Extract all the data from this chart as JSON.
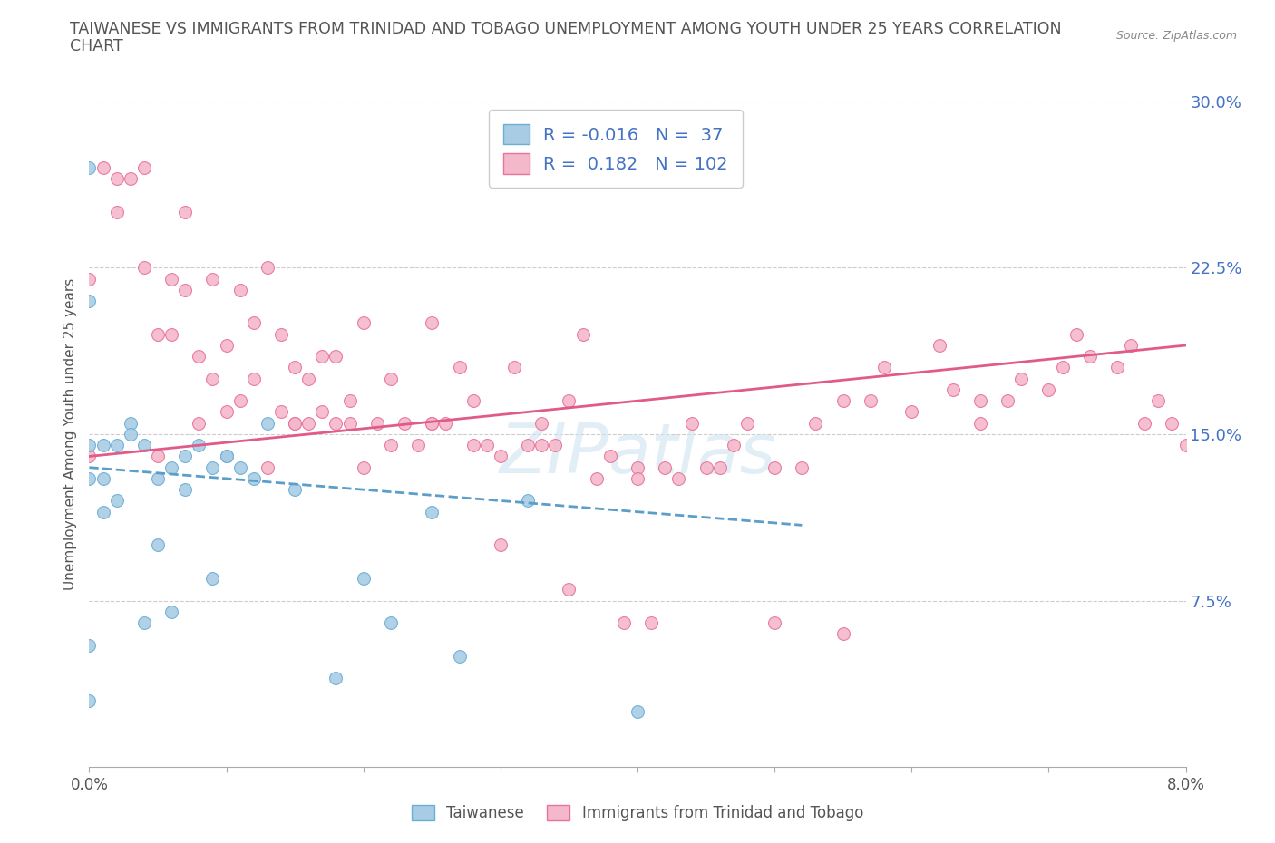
{
  "title_line1": "TAIWANESE VS IMMIGRANTS FROM TRINIDAD AND TOBAGO UNEMPLOYMENT AMONG YOUTH UNDER 25 YEARS CORRELATION",
  "title_line2": "CHART",
  "source": "Source: ZipAtlas.com",
  "ylabel": "Unemployment Among Youth under 25 years",
  "xmin": 0.0,
  "xmax": 0.08,
  "ymin": 0.0,
  "ymax": 0.3,
  "watermark": "ZIPatlas",
  "legend1_label": "Taiwanese",
  "legend2_label": "Immigrants from Trinidad and Tobago",
  "R1": -0.016,
  "N1": 37,
  "R2": 0.182,
  "N2": 102,
  "color_blue": "#a8cce4",
  "color_pink": "#f4b8cb",
  "color_blue_edge": "#6aaed6",
  "color_pink_edge": "#e8729a",
  "color_blue_line": "#5b9ec9",
  "color_pink_line": "#e05a8a",
  "blue_scatter_x": [
    0.0,
    0.0,
    0.0,
    0.0,
    0.0,
    0.0,
    0.001,
    0.001,
    0.001,
    0.002,
    0.002,
    0.003,
    0.003,
    0.004,
    0.004,
    0.005,
    0.005,
    0.006,
    0.006,
    0.007,
    0.007,
    0.008,
    0.009,
    0.009,
    0.01,
    0.01,
    0.011,
    0.012,
    0.013,
    0.015,
    0.018,
    0.02,
    0.022,
    0.025,
    0.027,
    0.032,
    0.04
  ],
  "blue_scatter_y": [
    0.27,
    0.21,
    0.145,
    0.13,
    0.055,
    0.03,
    0.145,
    0.13,
    0.115,
    0.145,
    0.12,
    0.155,
    0.15,
    0.145,
    0.065,
    0.13,
    0.1,
    0.135,
    0.07,
    0.14,
    0.125,
    0.145,
    0.135,
    0.085,
    0.14,
    0.14,
    0.135,
    0.13,
    0.155,
    0.125,
    0.04,
    0.085,
    0.065,
    0.115,
    0.05,
    0.12,
    0.025
  ],
  "pink_scatter_x": [
    0.0,
    0.0,
    0.001,
    0.002,
    0.002,
    0.003,
    0.004,
    0.004,
    0.005,
    0.005,
    0.006,
    0.006,
    0.007,
    0.007,
    0.008,
    0.008,
    0.009,
    0.009,
    0.01,
    0.01,
    0.011,
    0.011,
    0.012,
    0.012,
    0.013,
    0.013,
    0.014,
    0.014,
    0.015,
    0.015,
    0.016,
    0.016,
    0.017,
    0.018,
    0.018,
    0.019,
    0.02,
    0.02,
    0.021,
    0.022,
    0.023,
    0.024,
    0.025,
    0.025,
    0.026,
    0.027,
    0.028,
    0.029,
    0.03,
    0.031,
    0.032,
    0.033,
    0.034,
    0.035,
    0.036,
    0.038,
    0.039,
    0.04,
    0.041,
    0.043,
    0.044,
    0.046,
    0.048,
    0.05,
    0.052,
    0.055,
    0.058,
    0.06,
    0.062,
    0.065,
    0.067,
    0.07,
    0.072,
    0.075,
    0.077,
    0.078,
    0.079,
    0.08,
    0.04,
    0.045,
    0.05,
    0.055,
    0.03,
    0.035,
    0.025,
    0.028,
    0.033,
    0.037,
    0.042,
    0.047,
    0.053,
    0.057,
    0.063,
    0.068,
    0.073,
    0.076,
    0.065,
    0.071,
    0.019,
    0.022,
    0.015,
    0.017
  ],
  "pink_scatter_y": [
    0.22,
    0.14,
    0.27,
    0.265,
    0.25,
    0.265,
    0.225,
    0.27,
    0.195,
    0.14,
    0.22,
    0.195,
    0.215,
    0.25,
    0.185,
    0.155,
    0.22,
    0.175,
    0.19,
    0.16,
    0.215,
    0.165,
    0.2,
    0.175,
    0.225,
    0.135,
    0.195,
    0.16,
    0.18,
    0.155,
    0.175,
    0.155,
    0.185,
    0.185,
    0.155,
    0.165,
    0.2,
    0.135,
    0.155,
    0.175,
    0.155,
    0.145,
    0.2,
    0.155,
    0.155,
    0.18,
    0.165,
    0.145,
    0.14,
    0.18,
    0.145,
    0.155,
    0.145,
    0.165,
    0.195,
    0.14,
    0.065,
    0.135,
    0.065,
    0.13,
    0.155,
    0.135,
    0.155,
    0.135,
    0.135,
    0.165,
    0.18,
    0.16,
    0.19,
    0.155,
    0.165,
    0.17,
    0.195,
    0.18,
    0.155,
    0.165,
    0.155,
    0.145,
    0.13,
    0.135,
    0.065,
    0.06,
    0.1,
    0.08,
    0.155,
    0.145,
    0.145,
    0.13,
    0.135,
    0.145,
    0.155,
    0.165,
    0.17,
    0.175,
    0.185,
    0.19,
    0.165,
    0.18,
    0.155,
    0.145,
    0.155,
    0.16
  ]
}
